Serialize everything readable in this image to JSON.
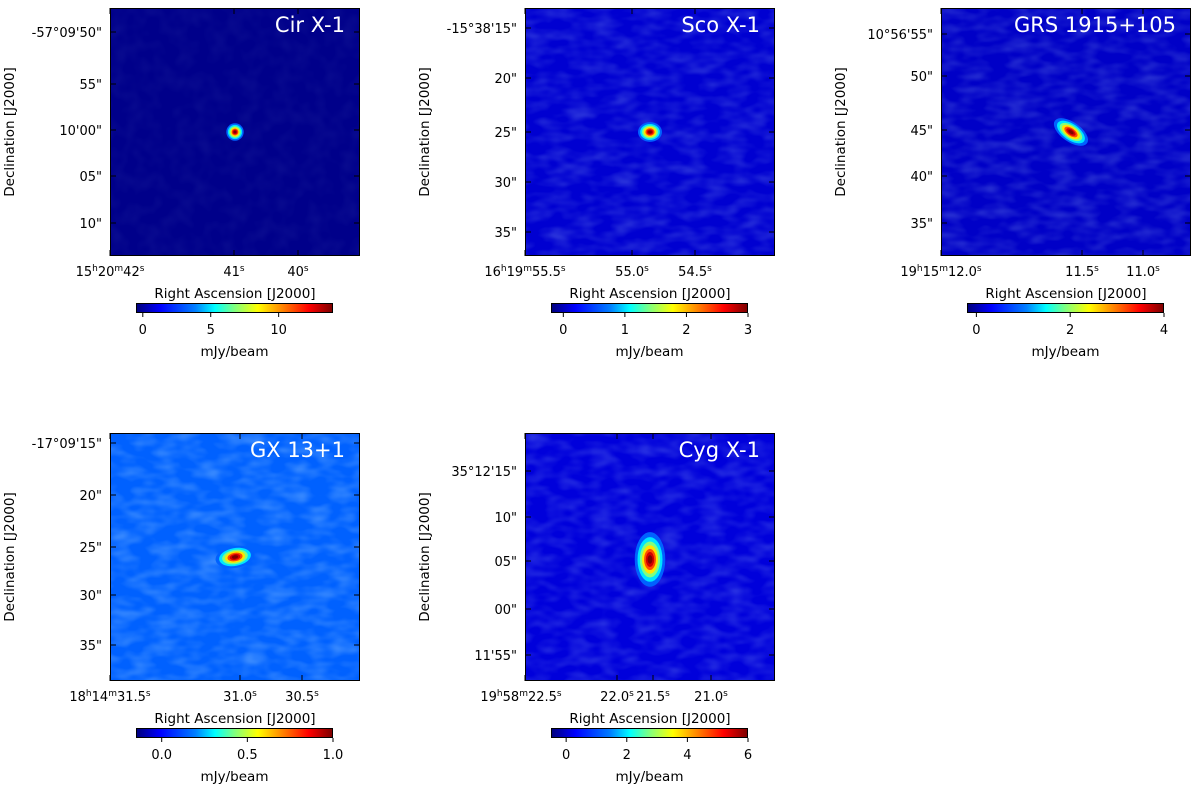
{
  "chart_data": [
    {
      "type": "heatmap",
      "title": "Cir X-1",
      "xlabel": "Right Ascension [J2000]",
      "ylabel": "Declination [J2000]",
      "x_ticks": [
        "15h20m42s",
        "41s",
        "40s"
      ],
      "y_ticks": [
        "-57°09'50\"",
        "55\"",
        "10'00\"",
        "05\"",
        "10\""
      ],
      "colorbar": {
        "label": "mJy/beam",
        "ticks": [
          "0",
          "5",
          "10"
        ],
        "range": [
          -0.5,
          14
        ]
      },
      "background_level": 0.01,
      "source": {
        "x_frac": 0.5,
        "y_frac": 0.5,
        "major_frac": 0.016,
        "minor_frac": 0.016,
        "angle_deg": 0
      }
    },
    {
      "type": "heatmap",
      "title": "Sco X-1",
      "xlabel": "Right Ascension [J2000]",
      "ylabel": "Declination [J2000]",
      "x_ticks": [
        "16h19m55.5s",
        "55.0s",
        "54.5s"
      ],
      "y_ticks": [
        "-15°38'15\"",
        "20\"",
        "25\"",
        "30\"",
        "35\""
      ],
      "colorbar": {
        "label": "mJy/beam",
        "ticks": [
          "0",
          "1",
          "2",
          "3"
        ],
        "range": [
          -0.2,
          3
        ]
      },
      "background_level": 0.08,
      "source": {
        "x_frac": 0.5,
        "y_frac": 0.5,
        "major_frac": 0.022,
        "minor_frac": 0.018,
        "angle_deg": 0
      }
    },
    {
      "type": "heatmap",
      "title": "GRS 1915+105",
      "xlabel": "Right Ascension [J2000]",
      "ylabel": "Declination [J2000]",
      "x_ticks": [
        "19h15m12.0s",
        "11.5s",
        "11.0s"
      ],
      "y_ticks": [
        "10°56'55\"",
        "50\"",
        "45\"",
        "40\"",
        "35\""
      ],
      "colorbar": {
        "label": "mJy/beam",
        "ticks": [
          "0",
          "2",
          "4"
        ],
        "range": [
          -0.2,
          4
        ]
      },
      "background_level": 0.07,
      "source": {
        "x_frac": 0.52,
        "y_frac": 0.5,
        "major_frac": 0.036,
        "minor_frac": 0.018,
        "angle_deg": 35
      }
    },
    {
      "type": "heatmap",
      "title": "GX 13+1",
      "xlabel": "Right Ascension [J2000]",
      "ylabel": "Declination [J2000]",
      "x_ticks": [
        "18h14m31.5s",
        "31.0s",
        "30.5s"
      ],
      "y_ticks": [
        "-17°09'15\"",
        "20\"",
        "25\"",
        "30\"",
        "35\""
      ],
      "colorbar": {
        "label": "mJy/beam",
        "ticks": [
          "0.0",
          "0.5",
          "1.0"
        ],
        "range": [
          -0.15,
          1.0
        ]
      },
      "background_level": 0.22,
      "source": {
        "x_frac": 0.5,
        "y_frac": 0.5,
        "major_frac": 0.036,
        "minor_frac": 0.02,
        "angle_deg": -10
      }
    },
    {
      "type": "heatmap",
      "title": "Cyg X-1",
      "xlabel": "Right Ascension [J2000]",
      "ylabel": "Declination [J2000]",
      "x_ticks": [
        "19h58m22.5s",
        "22.0s",
        "21.5s",
        "21.0s"
      ],
      "y_ticks": [
        "35°12'15\"",
        "10\"",
        "05\"",
        "00\"",
        "11'55\""
      ],
      "colorbar": {
        "label": "mJy/beam",
        "ticks": [
          "0",
          "2",
          "4",
          "6"
        ],
        "range": [
          -0.5,
          6
        ]
      },
      "background_level": 0.09,
      "source": {
        "x_frac": 0.5,
        "y_frac": 0.51,
        "major_frac": 0.05,
        "minor_frac": 0.028,
        "angle_deg": 0
      }
    }
  ]
}
